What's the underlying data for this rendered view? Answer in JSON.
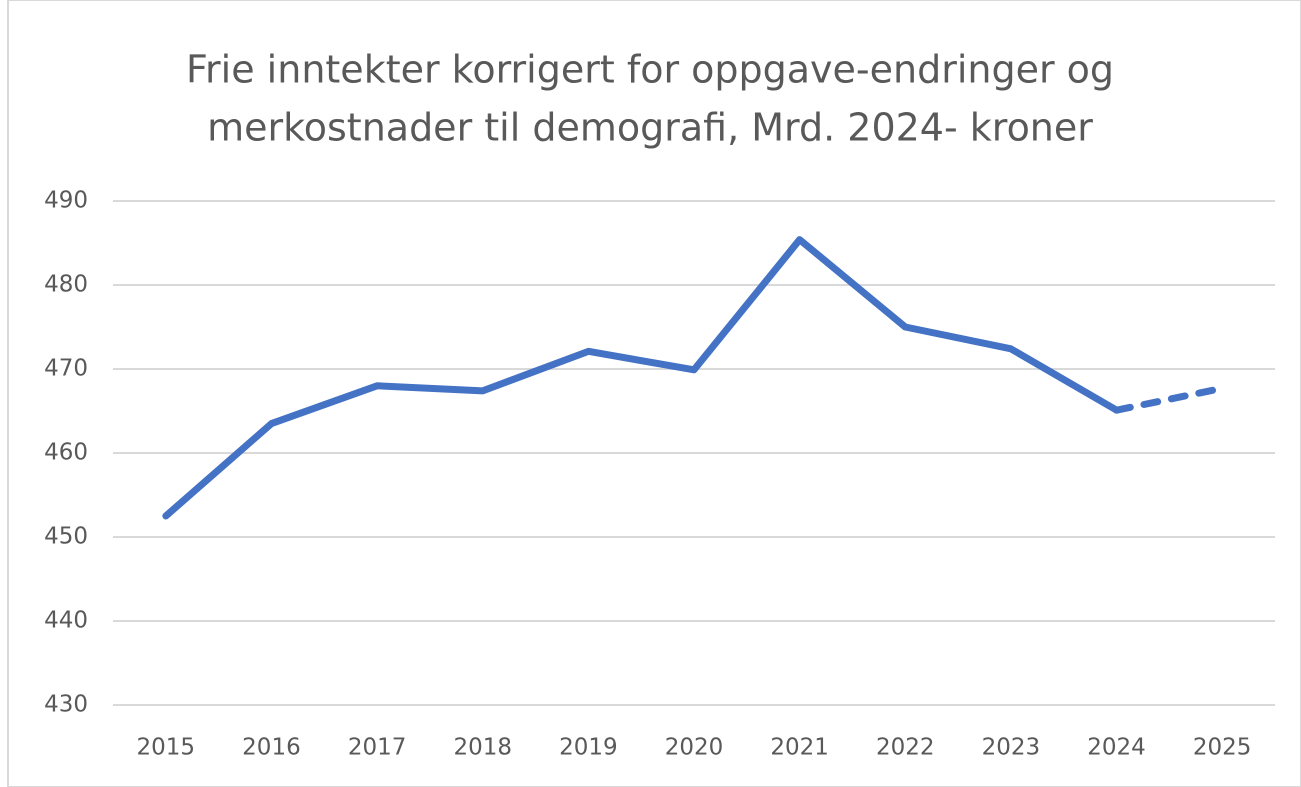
{
  "chart_data": {
    "type": "line",
    "title": [
      "Frie inntekter korrigert for oppgave-endringer og",
      "merkostnader til demografi, Mrd. 2024- kroner"
    ],
    "categories": [
      "2015",
      "2016",
      "2017",
      "2018",
      "2019",
      "2020",
      "2021",
      "2022",
      "2023",
      "2024",
      "2025"
    ],
    "series": [
      {
        "color": "#4472c4",
        "values": [
          452.5,
          463.5,
          468,
          467.4,
          472.1,
          469.9,
          485.4,
          475,
          472.4,
          465.1,
          467.7
        ],
        "dashed_from": "2024"
      }
    ],
    "ylim": [
      430,
      490
    ],
    "yticks": [
      430,
      440,
      450,
      460,
      470,
      480,
      490
    ],
    "grid": true
  }
}
